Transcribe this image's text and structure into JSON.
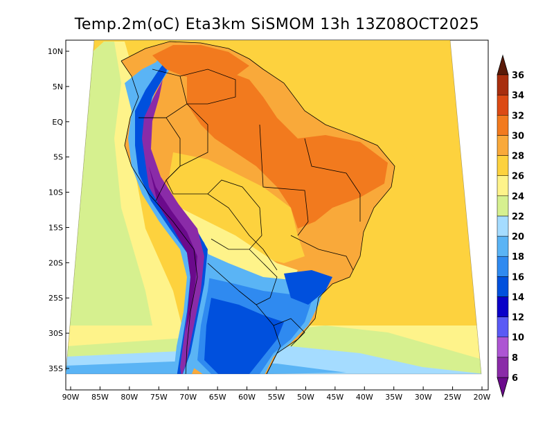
{
  "title": "Temp.2m(oC) Eta3km SiSMOM 13h 13Z08OCT2025",
  "colors": {
    "ocean_warm": "#fdd23e",
    "ocean_mid": "#fef38a",
    "ocean_cool": "#d6f08f",
    "land_hot": "#f9a93a",
    "land_very_hot": "#f27a1e",
    "border": "#000000"
  },
  "axes": {
    "x_ticks": [
      "90W",
      "85W",
      "80W",
      "75W",
      "70W",
      "65W",
      "60W",
      "55W",
      "50W",
      "45W",
      "40W",
      "35W",
      "30W",
      "25W",
      "20W"
    ],
    "y_ticks": [
      "10N",
      "5N",
      "EQ",
      "5S",
      "10S",
      "15S",
      "20S",
      "25S",
      "30S",
      "35S"
    ]
  },
  "colorbar": {
    "labels": [
      "6",
      "8",
      "10",
      "12",
      "14",
      "16",
      "18",
      "20",
      "22",
      "24",
      "26",
      "28",
      "30",
      "32",
      "34",
      "36"
    ],
    "colors": [
      "#8a2ba8",
      "#ad55d3",
      "#5a5af5",
      "#0a00c8",
      "#0050dd",
      "#2f8af0",
      "#5ab4f5",
      "#a5dcff",
      "#d6f08f",
      "#fef38a",
      "#fdd23e",
      "#f9a93a",
      "#f27a1e",
      "#dc4a14",
      "#a82e0e",
      "#7a1e0a"
    ],
    "under_color": "#6b0a8c",
    "over_color": "#5a1a08"
  }
}
